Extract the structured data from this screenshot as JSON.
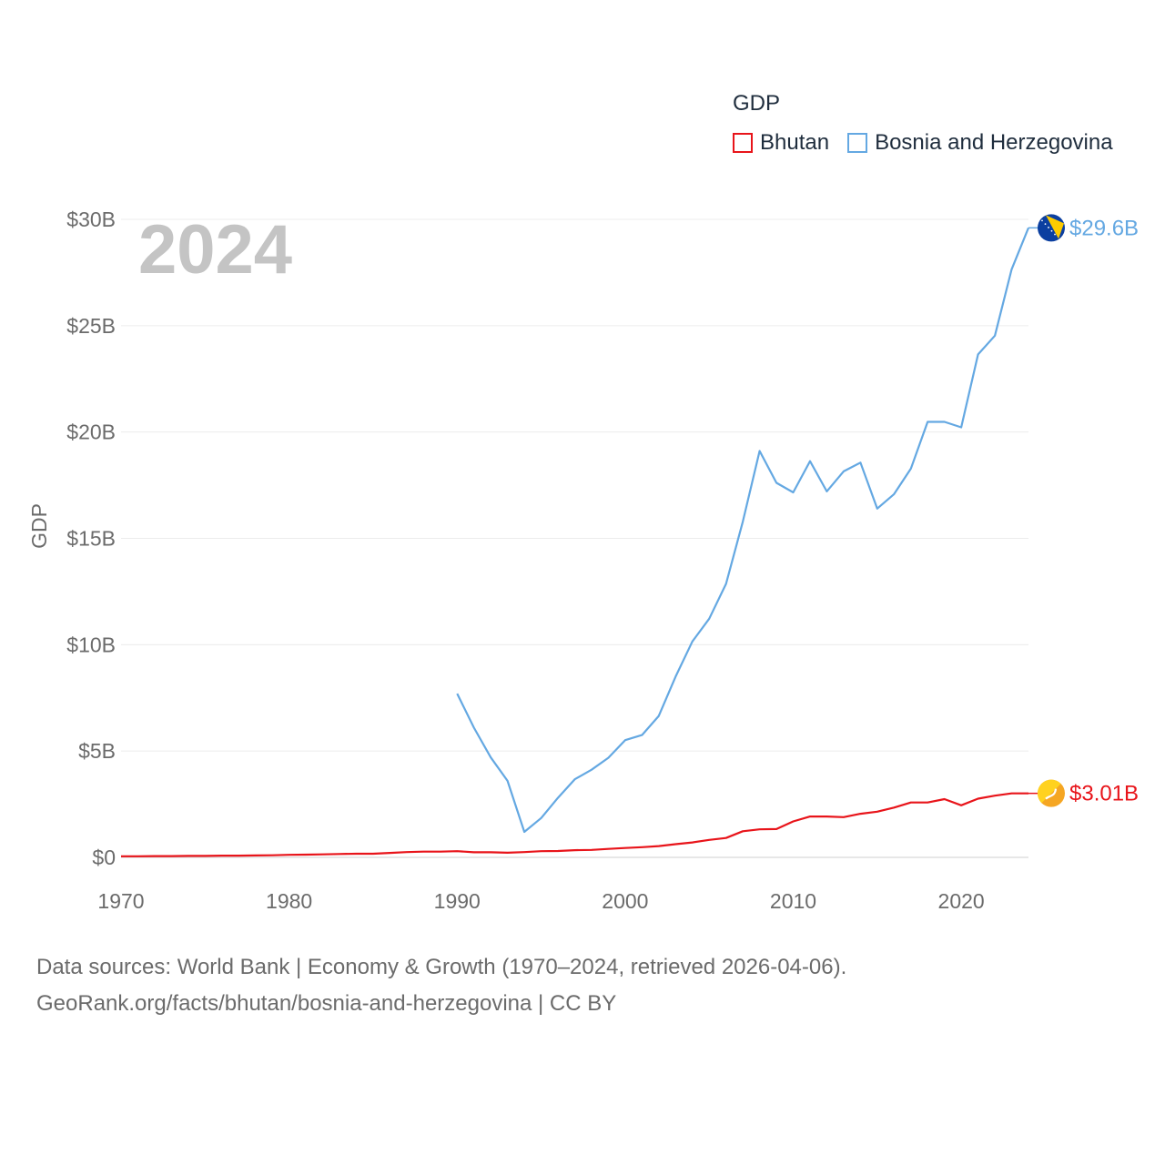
{
  "chart_data": {
    "type": "line",
    "title": "",
    "legend_title": "GDP",
    "year_label": "2024",
    "ylabel": "GDP",
    "xlabel": "",
    "xlim": [
      1970,
      2024
    ],
    "ylim": [
      0,
      30
    ],
    "x_ticks": [
      1970,
      1980,
      1990,
      2000,
      2010,
      2020
    ],
    "x_tick_labels": [
      "1970",
      "1980",
      "1990",
      "2000",
      "2010",
      "2020"
    ],
    "y_ticks": [
      0,
      5,
      10,
      15,
      20,
      25,
      30
    ],
    "y_tick_labels": [
      "$0",
      "$5B",
      "$10B",
      "$15B",
      "$20B",
      "$25B",
      "$30B"
    ],
    "legend_placement": "top-right",
    "series": [
      {
        "name": "Bhutan",
        "color": "#e8141a",
        "end_label": "$3.01B",
        "icon": "bhutan-flag-icon",
        "x": [
          1970,
          1971,
          1972,
          1973,
          1974,
          1975,
          1976,
          1977,
          1978,
          1979,
          1980,
          1981,
          1982,
          1983,
          1984,
          1985,
          1986,
          1987,
          1988,
          1989,
          1990,
          1991,
          1992,
          1993,
          1994,
          1995,
          1996,
          1997,
          1998,
          1999,
          2000,
          2001,
          2002,
          2003,
          2004,
          2005,
          2006,
          2007,
          2008,
          2009,
          2010,
          2011,
          2012,
          2013,
          2014,
          2015,
          2016,
          2017,
          2018,
          2019,
          2020,
          2021,
          2022,
          2023,
          2024
        ],
        "values": [
          0.05,
          0.05,
          0.06,
          0.06,
          0.07,
          0.07,
          0.08,
          0.08,
          0.09,
          0.1,
          0.12,
          0.13,
          0.14,
          0.16,
          0.17,
          0.17,
          0.21,
          0.25,
          0.27,
          0.27,
          0.29,
          0.24,
          0.24,
          0.22,
          0.25,
          0.29,
          0.3,
          0.34,
          0.35,
          0.4,
          0.44,
          0.48,
          0.53,
          0.62,
          0.7,
          0.82,
          0.91,
          1.23,
          1.32,
          1.33,
          1.69,
          1.92,
          1.92,
          1.89,
          2.05,
          2.15,
          2.34,
          2.58,
          2.58,
          2.74,
          2.45,
          2.76,
          2.9,
          3.01,
          3.01
        ]
      },
      {
        "name": "Bosnia and Herzegovina",
        "color": "#64a8e2",
        "end_label": "$29.6B",
        "icon": "bosnia-flag-icon",
        "x": [
          1990,
          1991,
          1992,
          1993,
          1994,
          1995,
          1996,
          1997,
          1998,
          1999,
          2000,
          2001,
          2002,
          2003,
          2004,
          2005,
          2006,
          2007,
          2008,
          2009,
          2010,
          2011,
          2012,
          2013,
          2014,
          2015,
          2016,
          2017,
          2018,
          2019,
          2020,
          2021,
          2022,
          2023,
          2024
        ],
        "values": [
          7.7,
          6.1,
          4.7,
          3.6,
          1.2,
          1.85,
          2.8,
          3.67,
          4.12,
          4.68,
          5.51,
          5.75,
          6.65,
          8.5,
          10.15,
          11.22,
          12.86,
          15.78,
          19.11,
          17.61,
          17.16,
          18.63,
          17.21,
          18.15,
          18.56,
          16.4,
          17.08,
          18.28,
          20.48,
          20.48,
          20.22,
          23.65,
          24.53,
          27.65,
          29.6
        ]
      }
    ]
  },
  "footer": {
    "line1": "Data sources: World Bank | Economy & Growth (1970–2024, retrieved 2026-04-06).",
    "line2": "GeoRank.org/facts/bhutan/bosnia-and-herzegovina | CC BY"
  }
}
